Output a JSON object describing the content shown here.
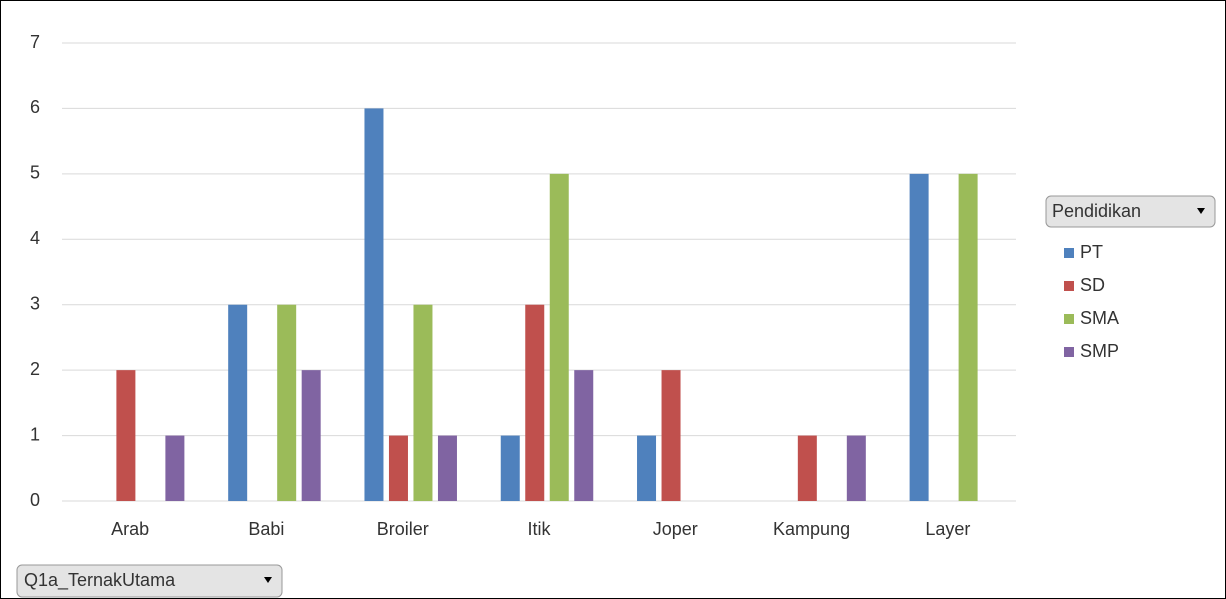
{
  "chart_data": {
    "type": "bar",
    "categories": [
      "Arab",
      "Babi",
      "Broiler",
      "Itik",
      "Joper",
      "Kampung",
      "Layer"
    ],
    "series": [
      {
        "name": "PT",
        "color": "#4f81bd",
        "values": [
          null,
          3,
          6,
          1,
          1,
          null,
          5
        ]
      },
      {
        "name": "SD",
        "color": "#c0504d",
        "values": [
          2,
          null,
          1,
          3,
          2,
          1,
          null
        ]
      },
      {
        "name": "SMA",
        "color": "#9bbb59",
        "values": [
          null,
          3,
          3,
          5,
          null,
          null,
          5
        ]
      },
      {
        "name": "SMP",
        "color": "#8064a2",
        "values": [
          1,
          2,
          1,
          2,
          null,
          1,
          null
        ]
      }
    ],
    "ylim": [
      0,
      7
    ],
    "yticks": [
      0,
      1,
      2,
      3,
      4,
      5,
      6,
      7
    ],
    "grid": true,
    "legend_title": "Pendidikan",
    "x_label": "Q1a_TernakUtama",
    "legend": "right"
  }
}
